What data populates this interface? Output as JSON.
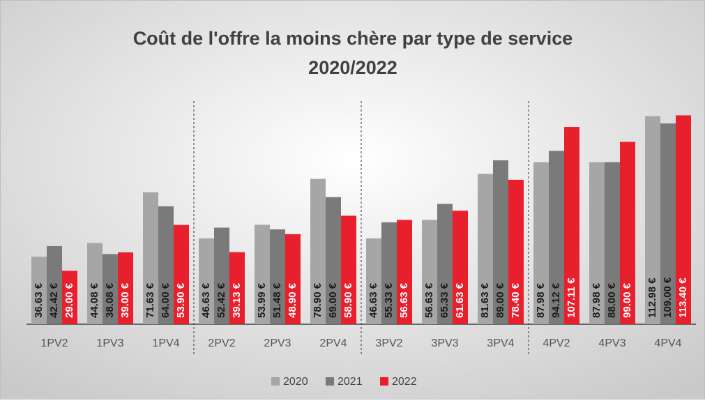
{
  "chart_data": {
    "type": "bar",
    "title": [
      "Coût de l'offre la moins chère par type de service",
      "2020/2022"
    ],
    "categories": [
      "1PV2",
      "1PV3",
      "1PV4",
      "2PV2",
      "2PV3",
      "2PV4",
      "3PV2",
      "3PV3",
      "3PV4",
      "4PV2",
      "4PV3",
      "4PV4"
    ],
    "series": [
      {
        "name": "2020",
        "color": "#a6a6a6",
        "values": [
          36.63,
          44.08,
          71.63,
          46.63,
          53.99,
          78.9,
          46.63,
          56.63,
          81.63,
          87.98,
          87.98,
          112.98
        ],
        "value_labels": [
          "36.63 €",
          "44.08 €",
          "71.63 €",
          "46.63 €",
          "53.99 €",
          "78.90 €",
          "46.63 €",
          "56.63 €",
          "81.63 €",
          "87.98 €",
          "87.98 €",
          "112.98 €"
        ]
      },
      {
        "name": "2021",
        "color": "#7a7a7a",
        "values": [
          42.42,
          38.08,
          64.0,
          52.42,
          51.48,
          69.0,
          55.33,
          65.33,
          89.0,
          94.12,
          88.0,
          109.0
        ],
        "value_labels": [
          "42.42 €",
          "38.08 €",
          "64.00 €",
          "52.42 €",
          "51.48 €",
          "69.00 €",
          "55.33 €",
          "65.33 €",
          "89.00 €",
          "94.12 €",
          "88.00 €",
          "109.00 €"
        ]
      },
      {
        "name": "2022",
        "color": "#e8202e",
        "values": [
          29.0,
          39.0,
          53.9,
          39.13,
          48.9,
          58.9,
          56.63,
          61.63,
          78.4,
          107.11,
          99.0,
          113.4
        ],
        "value_labels": [
          "29.00 €",
          "39.00 €",
          "53.90 €",
          "39.13 €",
          "48.90 €",
          "58.90 €",
          "56.63 €",
          "61.63 €",
          "78.40 €",
          "107.11 €",
          "99.00 €",
          "113.40 €"
        ]
      }
    ],
    "ylim": [
      0,
      120
    ],
    "legend": "bottom"
  }
}
